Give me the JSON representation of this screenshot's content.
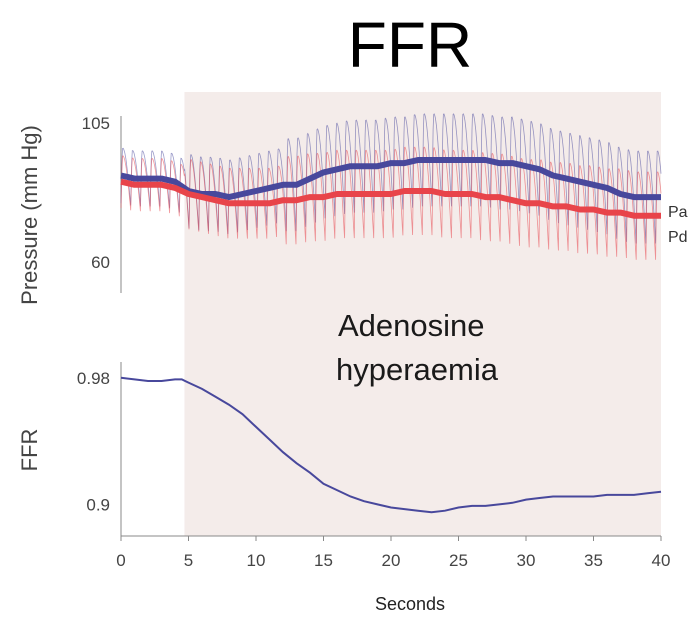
{
  "chart_data": [
    {
      "type": "line",
      "title": "FFR",
      "ylabel": "Pressure (mm Hg)",
      "xlabel": "Seconds",
      "xlim": [
        0,
        40
      ],
      "ylim": [
        50,
        115
      ],
      "yticks": [
        60,
        105
      ],
      "shaded_region": {
        "x": [
          4.7,
          40
        ],
        "color": "#f4ecea",
        "label_lines": [
          "Adenosine",
          "hyperaemia"
        ]
      },
      "series": [
        {
          "name": "Pa",
          "color": "#48489c",
          "x": [
            0,
            1,
            2,
            3,
            4,
            5,
            6,
            7,
            8,
            9,
            10,
            11,
            12,
            13,
            14,
            15,
            16,
            17,
            18,
            19,
            20,
            21,
            22,
            23,
            24,
            25,
            26,
            27,
            28,
            29,
            30,
            31,
            32,
            33,
            34,
            35,
            36,
            37,
            38,
            39,
            40
          ],
          "values": [
            88,
            87,
            87,
            87,
            86,
            83,
            82,
            82,
            81,
            82,
            83,
            84,
            85,
            85,
            87,
            89,
            90,
            91,
            91,
            91,
            92,
            92,
            93,
            93,
            93,
            93,
            93,
            93,
            92,
            92,
            91,
            90,
            88,
            87,
            86,
            85,
            84,
            82,
            81,
            81,
            81
          ]
        },
        {
          "name": "Pd",
          "color": "#e8444a",
          "x": [
            0,
            1,
            2,
            3,
            4,
            5,
            6,
            7,
            8,
            9,
            10,
            11,
            12,
            13,
            14,
            15,
            16,
            17,
            18,
            19,
            20,
            21,
            22,
            23,
            24,
            25,
            26,
            27,
            28,
            29,
            30,
            31,
            32,
            33,
            34,
            35,
            36,
            37,
            38,
            39,
            40
          ],
          "values": [
            86,
            85,
            85,
            85,
            84,
            82,
            81,
            80,
            79,
            79,
            79,
            79,
            80,
            80,
            81,
            81,
            82,
            82,
            82,
            82,
            82,
            83,
            83,
            83,
            82,
            82,
            82,
            81,
            81,
            80,
            79,
            79,
            78,
            78,
            77,
            77,
            76,
            76,
            75,
            75,
            75
          ]
        }
      ]
    },
    {
      "type": "line",
      "ylabel": "FFR",
      "xlabel": "Seconds",
      "xlim": [
        0,
        40
      ],
      "ylim": [
        0.88,
        0.99
      ],
      "yticks": [
        0.9,
        0.98
      ],
      "xticks": [
        0,
        5,
        10,
        15,
        20,
        25,
        30,
        35,
        40
      ],
      "series": [
        {
          "color": "#48489c",
          "x": [
            0,
            1,
            2,
            3,
            4,
            4.5,
            5,
            6,
            7,
            8,
            9,
            10,
            11,
            12,
            13,
            14,
            15,
            16,
            17,
            18,
            19,
            20,
            21,
            22,
            23,
            24,
            25,
            26,
            27,
            28,
            29,
            30,
            31,
            32,
            33,
            34,
            35,
            36,
            37,
            38,
            39,
            40
          ],
          "values": [
            0.98,
            0.979,
            0.978,
            0.978,
            0.979,
            0.979,
            0.977,
            0.973,
            0.968,
            0.963,
            0.957,
            0.949,
            0.941,
            0.933,
            0.926,
            0.92,
            0.913,
            0.909,
            0.905,
            0.902,
            0.9,
            0.898,
            0.897,
            0.896,
            0.895,
            0.896,
            0.898,
            0.899,
            0.899,
            0.9,
            0.901,
            0.903,
            0.904,
            0.905,
            0.905,
            0.905,
            0.905,
            0.906,
            0.906,
            0.906,
            0.907,
            0.908
          ]
        }
      ]
    }
  ]
}
